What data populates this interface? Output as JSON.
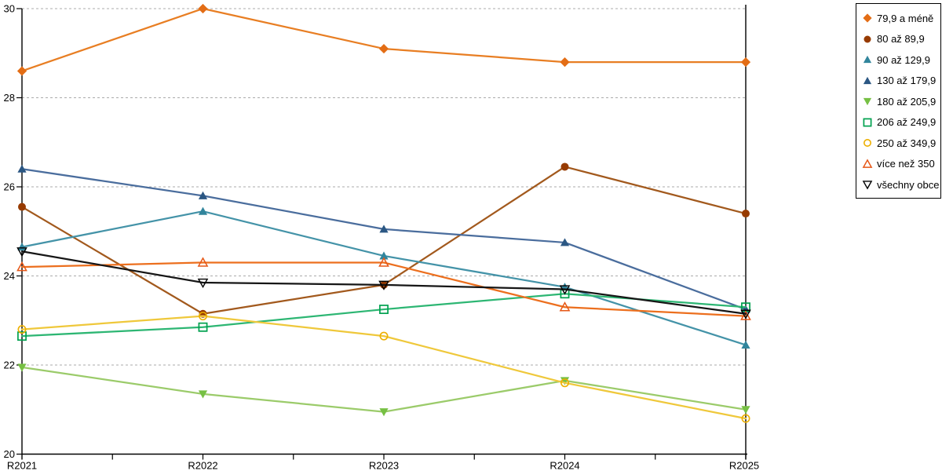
{
  "chart_data": {
    "type": "line",
    "title": "",
    "xlabel": "",
    "ylabel": "",
    "categories": [
      "R2021",
      "R2022",
      "R2023",
      "R2024",
      "R2025"
    ],
    "ylim": [
      20,
      30
    ],
    "yticks": [
      20,
      22,
      24,
      26,
      28,
      30
    ],
    "grid": "horizontal-dashed",
    "grid_color": "#ABABAB",
    "axis_color": "#000000",
    "legend_position": "top-right-outside",
    "legend_border": true,
    "series": [
      {
        "name": "79,9 a méně",
        "marker": "diamond-filled",
        "line_color": "#E87E23",
        "marker_color": "#E36D15",
        "values": [
          28.6,
          30.0,
          29.1,
          28.8,
          28.8
        ]
      },
      {
        "name": "80 až 89,9",
        "marker": "circle-filled",
        "line_color": "#A2591D",
        "marker_color": "#973B00",
        "values": [
          25.55,
          23.15,
          23.8,
          26.45,
          25.4
        ]
      },
      {
        "name": "90 až 129,9",
        "marker": "triangle-up-filled",
        "line_color": "#4493A8",
        "marker_color": "#31859C",
        "values": [
          24.65,
          25.45,
          24.45,
          23.75,
          22.45
        ]
      },
      {
        "name": "130 až 179,9",
        "marker": "triangle-up-filled",
        "line_color": "#4A6D9D",
        "marker_color": "#2B5783",
        "values": [
          26.4,
          25.8,
          25.05,
          24.75,
          23.25
        ]
      },
      {
        "name": "180 až 205,9",
        "marker": "triangle-down-filled",
        "line_color": "#9BCB6A",
        "marker_color": "#76C043",
        "values": [
          21.95,
          21.35,
          20.95,
          21.65,
          21.0
        ]
      },
      {
        "name": "206 až 249,9",
        "marker": "square-open",
        "line_color": "#2DB673",
        "marker_color": "#00A14F",
        "values": [
          22.65,
          22.85,
          23.25,
          23.6,
          23.3
        ]
      },
      {
        "name": "250 až 349,9",
        "marker": "circle-open",
        "line_color": "#EFC83B",
        "marker_color": "#EDAF00",
        "values": [
          22.8,
          23.1,
          22.65,
          21.6,
          20.8
        ]
      },
      {
        "name": "více než 350",
        "marker": "triangle-up-open",
        "line_color": "#EC6F1E",
        "marker_color": "#E65717",
        "values": [
          24.2,
          24.3,
          24.3,
          23.3,
          23.1
        ]
      },
      {
        "name": "všechny obce",
        "marker": "triangle-down-open",
        "line_color": "#161616",
        "marker_color": "#000000",
        "values": [
          24.55,
          23.85,
          23.8,
          23.7,
          23.15
        ]
      }
    ]
  }
}
